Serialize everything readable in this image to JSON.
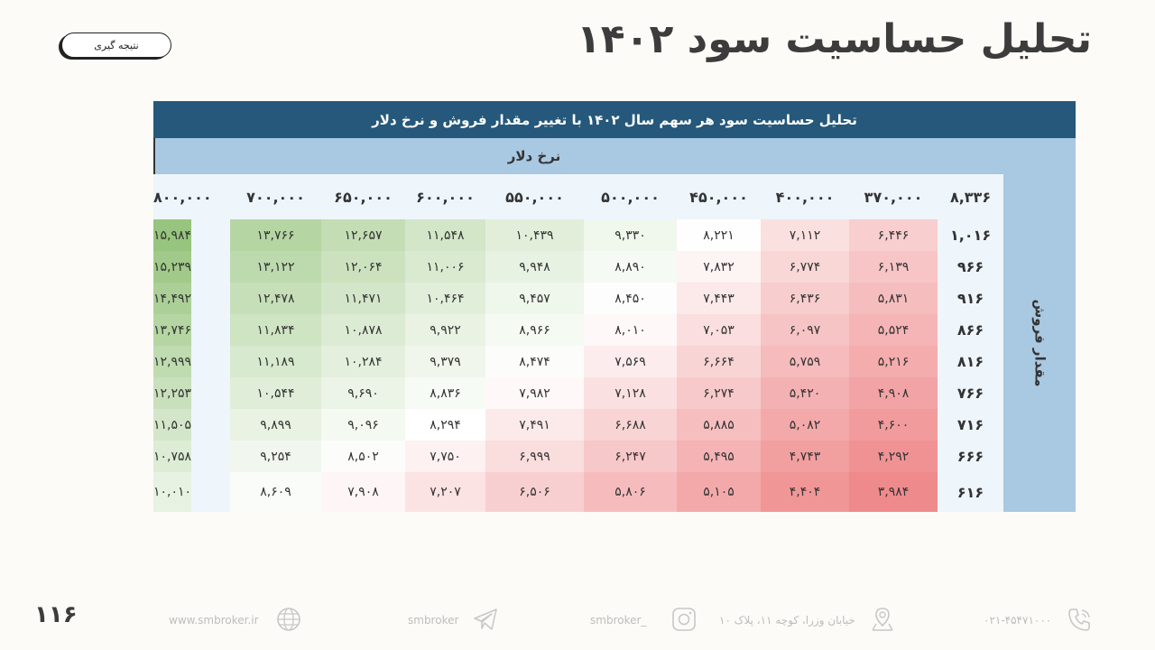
{
  "page": {
    "title": "تحلیل حساسیت سود ۱۴۰۲",
    "conclusion_button": "نتیجه گیری",
    "page_number": "۱۱۶"
  },
  "table": {
    "title": "تحلیل حساسیت سود هر سهم سال ۱۴۰۲ با تغییر مقدار فروش و نرخ دلار",
    "col_axis_label": "نرخ دلار",
    "row_axis_label": "مقدار فروش",
    "corner": "۸,۳۳۶",
    "columns": [
      "۳۷۰,۰۰۰",
      "۴۰۰,۰۰۰",
      "۴۵۰,۰۰۰",
      "۵۰۰,۰۰۰",
      "۵۵۰,۰۰۰",
      "۶۰۰,۰۰۰",
      "۶۵۰,۰۰۰",
      "۷۰۰,۰۰۰",
      "۸۰۰,۰۰۰"
    ],
    "rows": [
      {
        "label": "۱,۰۱۶",
        "values": [
          "۶,۴۴۶",
          "۷,۱۱۲",
          "۸,۲۲۱",
          "۹,۳۳۰",
          "۱۰,۴۳۹",
          "۱۱,۵۴۸",
          "۱۲,۶۵۷",
          "۱۳,۷۶۶",
          "۱۵,۹۸۴"
        ]
      },
      {
        "label": "۹۶۶",
        "values": [
          "۶,۱۳۹",
          "۶,۷۷۴",
          "۷,۸۳۲",
          "۸,۸۹۰",
          "۹,۹۴۸",
          "۱۱,۰۰۶",
          "۱۲,۰۶۴",
          "۱۳,۱۲۲",
          "۱۵,۲۳۹"
        ]
      },
      {
        "label": "۹۱۶",
        "values": [
          "۵,۸۳۱",
          "۶,۴۳۶",
          "۷,۴۴۳",
          "۸,۴۵۰",
          "۹,۴۵۷",
          "۱۰,۴۶۴",
          "۱۱,۴۷۱",
          "۱۲,۴۷۸",
          "۱۴,۴۹۲"
        ]
      },
      {
        "label": "۸۶۶",
        "values": [
          "۵,۵۲۴",
          "۶,۰۹۷",
          "۷,۰۵۳",
          "۸,۰۱۰",
          "۸,۹۶۶",
          "۹,۹۲۲",
          "۱۰,۸۷۸",
          "۱۱,۸۳۴",
          "۱۳,۷۴۶"
        ]
      },
      {
        "label": "۸۱۶",
        "values": [
          "۵,۲۱۶",
          "۵,۷۵۹",
          "۶,۶۶۴",
          "۷,۵۶۹",
          "۸,۴۷۴",
          "۹,۳۷۹",
          "۱۰,۲۸۴",
          "۱۱,۱۸۹",
          "۱۲,۹۹۹"
        ]
      },
      {
        "label": "۷۶۶",
        "values": [
          "۴,۹۰۸",
          "۵,۴۲۰",
          "۶,۲۷۴",
          "۷,۱۲۸",
          "۷,۹۸۲",
          "۸,۸۳۶",
          "۹,۶۹۰",
          "۱۰,۵۴۴",
          "۱۲,۲۵۳"
        ]
      },
      {
        "label": "۷۱۶",
        "values": [
          "۴,۶۰۰",
          "۵,۰۸۲",
          "۵,۸۸۵",
          "۶,۶۸۸",
          "۷,۴۹۱",
          "۸,۲۹۴",
          "۹,۰۹۶",
          "۹,۸۹۹",
          "۱۱,۵۰۵"
        ]
      },
      {
        "label": "۶۶۶",
        "values": [
          "۴,۲۹۲",
          "۴,۷۴۳",
          "۵,۴۹۵",
          "۶,۲۴۷",
          "۶,۹۹۹",
          "۷,۷۵۰",
          "۸,۵۰۲",
          "۹,۲۵۴",
          "۱۰,۷۵۸"
        ]
      },
      {
        "label": "۶۱۶",
        "values": [
          "۳,۹۸۴",
          "۴,۴۰۴",
          "۵,۱۰۵",
          "۵,۸۰۶",
          "۶,۵۰۶",
          "۷,۲۰۷",
          "۷,۹۰۸",
          "۸,۶۰۹",
          "۱۰,۰۱۰"
        ]
      }
    ],
    "colors": {
      "low": "#ef8a8c",
      "mid": "#ffffff",
      "high": "#97c47e"
    }
  },
  "footer": {
    "phone": "۰۲۱-۴۵۴۷۱۰۰۰",
    "address": "خیابان وزرا، کوچه ۱۱، پلاک ۱۰",
    "instagram": "smbroker_",
    "telegram": "smbroker",
    "website": "www.smbroker.ir"
  }
}
